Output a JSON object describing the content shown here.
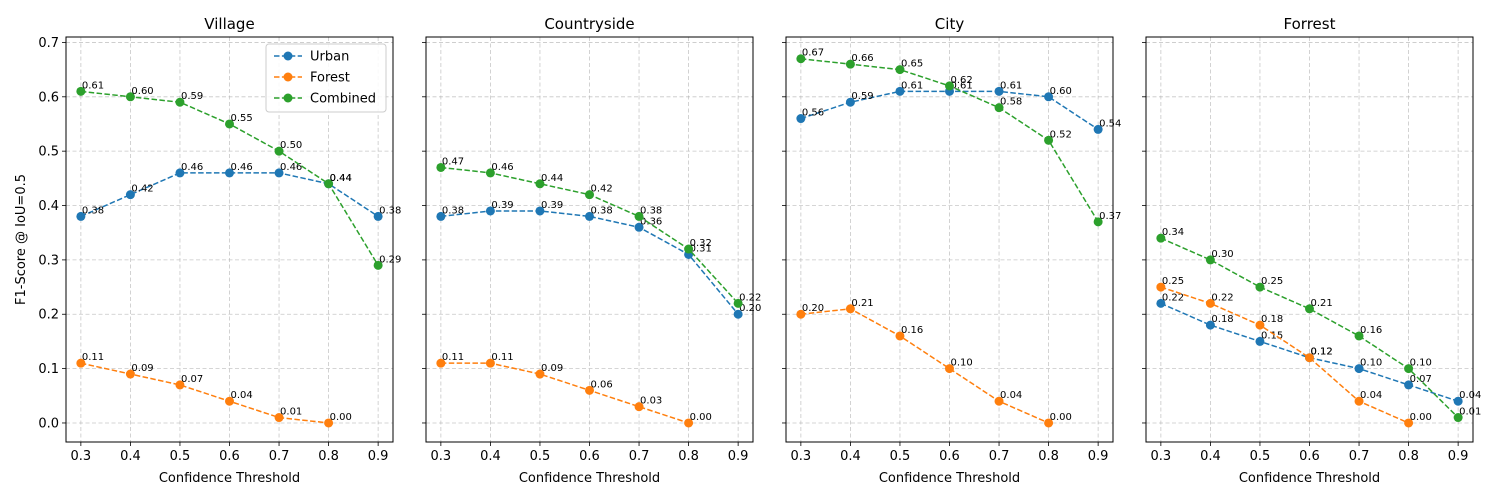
{
  "chart_data": [
    {
      "type": "line",
      "title": "Village",
      "xlabel": "Confidence Threshold",
      "ylabel": "F1-Score @ IoU=0.5",
      "x": [
        0.3,
        0.4,
        0.5,
        0.6,
        0.7,
        0.8,
        0.9
      ],
      "series": [
        {
          "name": "Urban",
          "color": "#1f77b4",
          "values": [
            0.38,
            0.42,
            0.46,
            0.46,
            0.46,
            0.44,
            0.38
          ]
        },
        {
          "name": "Forest",
          "color": "#ff7f0e",
          "values": [
            0.11,
            0.09,
            0.07,
            0.04,
            0.01,
            0.0,
            null
          ]
        },
        {
          "name": "Combined",
          "color": "#2ca02c",
          "values": [
            0.61,
            0.6,
            0.59,
            0.55,
            0.5,
            0.44,
            0.29
          ]
        }
      ],
      "legend": "upper-right"
    },
    {
      "type": "line",
      "title": "Countryside",
      "xlabel": "Confidence Threshold",
      "x": [
        0.3,
        0.4,
        0.5,
        0.6,
        0.7,
        0.8,
        0.9
      ],
      "series": [
        {
          "name": "Urban",
          "color": "#1f77b4",
          "values": [
            0.38,
            0.39,
            0.39,
            0.38,
            0.36,
            0.31,
            0.2
          ]
        },
        {
          "name": "Forest",
          "color": "#ff7f0e",
          "values": [
            0.11,
            0.11,
            0.09,
            0.06,
            0.03,
            0.0,
            null
          ]
        },
        {
          "name": "Combined",
          "color": "#2ca02c",
          "values": [
            0.47,
            0.46,
            0.44,
            0.42,
            0.38,
            0.32,
            0.22
          ]
        }
      ]
    },
    {
      "type": "line",
      "title": "City",
      "xlabel": "Confidence Threshold",
      "x": [
        0.3,
        0.4,
        0.5,
        0.6,
        0.7,
        0.8,
        0.9
      ],
      "series": [
        {
          "name": "Urban",
          "color": "#1f77b4",
          "values": [
            0.56,
            0.59,
            0.61,
            0.61,
            0.61,
            0.6,
            0.54
          ]
        },
        {
          "name": "Forest",
          "color": "#ff7f0e",
          "values": [
            0.2,
            0.21,
            0.16,
            0.1,
            0.04,
            0.0,
            null
          ]
        },
        {
          "name": "Combined",
          "color": "#2ca02c",
          "values": [
            0.67,
            0.66,
            0.65,
            0.62,
            0.58,
            0.52,
            0.37
          ]
        }
      ]
    },
    {
      "type": "line",
      "title": "Forrest",
      "xlabel": "Confidence Threshold",
      "x": [
        0.3,
        0.4,
        0.5,
        0.6,
        0.7,
        0.8,
        0.9
      ],
      "series": [
        {
          "name": "Urban",
          "color": "#1f77b4",
          "values": [
            0.22,
            0.18,
            0.15,
            0.12,
            0.1,
            0.07,
            0.04
          ]
        },
        {
          "name": "Forest",
          "color": "#ff7f0e",
          "values": [
            0.25,
            0.22,
            0.18,
            0.12,
            0.04,
            0.0,
            null
          ]
        },
        {
          "name": "Combined",
          "color": "#2ca02c",
          "values": [
            0.34,
            0.3,
            0.25,
            0.21,
            0.16,
            0.1,
            0.01
          ]
        }
      ]
    }
  ],
  "shared": {
    "ylim": [
      -0.035,
      0.71
    ],
    "xlim": [
      0.27,
      0.93
    ],
    "yticks": [
      "0.0",
      "0.1",
      "0.2",
      "0.3",
      "0.4",
      "0.5",
      "0.6",
      "0.7"
    ],
    "ytick_values": [
      0,
      0.1,
      0.2,
      0.3,
      0.4,
      0.5,
      0.6,
      0.7
    ],
    "xticks": [
      "0.3",
      "0.4",
      "0.5",
      "0.6",
      "0.7",
      "0.8",
      "0.9"
    ],
    "grid": true,
    "legend_entries": [
      "Urban",
      "Forest",
      "Combined"
    ]
  }
}
